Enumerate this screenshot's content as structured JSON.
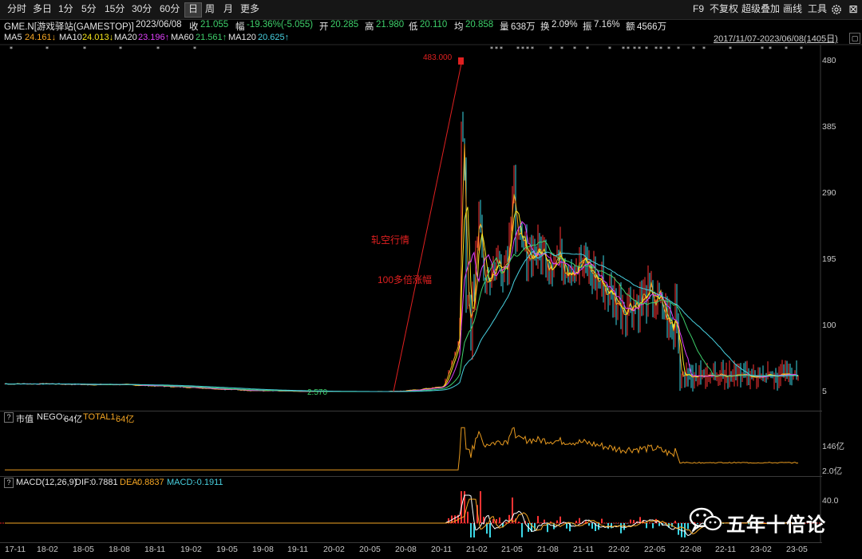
{
  "toolbar": {
    "periods": [
      "分时",
      "多日",
      "1分",
      "5分",
      "15分",
      "30分",
      "60分",
      "日",
      "周",
      "月",
      "更多"
    ],
    "active_period": "日",
    "right": [
      "F9",
      "不复权",
      "超级叠加",
      "画线",
      "工具"
    ]
  },
  "info": {
    "symbol": "GME.N[游戏驿站(GAMESTOP)]",
    "date": "2023/06/08",
    "close_label": "收",
    "close": "21.055",
    "change_label": "幅",
    "change": "-19.36%(-5.055)",
    "open_label": "开",
    "open": "20.285",
    "high_label": "高",
    "high": "21.980",
    "low_label": "低",
    "low": "20.110",
    "avg_label": "均",
    "avg": "20.858",
    "volume_label": "量",
    "volume": "638万",
    "turnover_label": "换",
    "turnover": "2.09%",
    "amplitude_label": "振",
    "amplitude": "7.16%",
    "amount_label": "额",
    "amount": "4566万"
  },
  "ma": {
    "ma5_label": "MA5",
    "ma5": "24.161↓",
    "ma10_label": "MA10",
    "ma10": "24.013↓",
    "ma20_label": "MA20",
    "ma20": "23.196↑",
    "ma60_label": "MA60",
    "ma60": "21.561↑",
    "ma120_label": "MA120",
    "ma120": "20.625↑",
    "range": "2017/11/07-2023/06/08(1405日)"
  },
  "colors": {
    "ma5": "#f5a623",
    "ma10": "#f8e71c",
    "ma20": "#e040fb",
    "ma60": "#3ecf6a",
    "ma120": "#48d1e0",
    "up": "#ff3333",
    "down": "#3bd7e6",
    "annotation": "#e02020"
  },
  "annotations": {
    "peak": "483.000",
    "low": "2.570",
    "squeeze": "轧空行情",
    "gain": "100多倍涨幅"
  },
  "market_cap_panel": {
    "title": "市值",
    "nego_label": "NEGO:",
    "nego": "64亿",
    "total_label": "TOTAL1:",
    "total": "64亿",
    "axis": [
      "146亿",
      "2.0亿"
    ]
  },
  "macd_panel": {
    "title": "MACD(12,26,9)",
    "dif_label": "DIF:",
    "dif": "0.7881",
    "dea_label": "DEA:",
    "dea": "0.8837",
    "macd_label": "MACD:",
    "macd": "-0.1911",
    "axis": [
      "40.0"
    ]
  },
  "price_axis": [
    "480",
    "385",
    "290",
    "195",
    "100",
    "5"
  ],
  "x_axis": [
    "17-11",
    "18-02",
    "18-05",
    "18-08",
    "18-11",
    "19-02",
    "19-05",
    "19-08",
    "19-11",
    "20-02",
    "20-05",
    "20-08",
    "20-11",
    "21-02",
    "21-05",
    "21-08",
    "21-11",
    "22-02",
    "22-05",
    "22-08",
    "22-11",
    "23-02",
    "23-05"
  ],
  "watermark": {
    "text": "五年十倍论",
    "icon": "wechat-icon"
  },
  "chart_data": {
    "type": "line",
    "title": "GME.N[游戏驿站(GAMESTOP)]",
    "xlabel": "",
    "ylabel": "",
    "ylim": [
      5,
      480
    ],
    "x": [
      "17-11",
      "18-02",
      "18-05",
      "18-08",
      "18-11",
      "19-02",
      "19-05",
      "19-08",
      "19-11",
      "20-02",
      "20-05",
      "20-08",
      "20-11",
      "21-02",
      "21-05",
      "21-08",
      "21-11",
      "22-02",
      "22-05",
      "22-08",
      "22-11",
      "23-02",
      "23-05"
    ],
    "series": [
      {
        "name": "MA5",
        "values": [
          16,
          16,
          15,
          15,
          13,
          11,
          8,
          6,
          5,
          4,
          4,
          6,
          12,
          160,
          210,
          200,
          185,
          130,
          140,
          30,
          25,
          22,
          24
        ]
      },
      {
        "name": "MA120",
        "values": [
          17,
          16,
          16,
          15,
          14,
          12,
          9,
          7,
          5,
          5,
          4,
          5,
          8,
          80,
          150,
          180,
          190,
          165,
          150,
          110,
          40,
          25,
          21
        ]
      }
    ]
  }
}
